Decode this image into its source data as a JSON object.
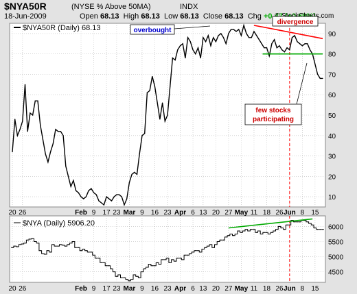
{
  "header": {
    "symbol": "$NYA50R",
    "description": "(NYSE % Above 50MA)",
    "exchange": "INDX",
    "date": "18-Jun-2009",
    "open_label": "Open",
    "open": "68.13",
    "high_label": "High",
    "high": "68.13",
    "low_label": "Low",
    "low": "68.13",
    "close_label": "Close",
    "close": "68.13",
    "chg_label": "Chg",
    "chg": "+0.47 (+0.69%)",
    "copyright": "© StockCharts.com"
  },
  "colors": {
    "panel_bg": "#ffffff",
    "chrome_bg": "#e3e3e3",
    "grid": "#b9b9b9",
    "price_line": "#000000",
    "divergence": "#ff0000",
    "support": "#00aa00",
    "annotation_text_blue": "#0000cc",
    "annotation_text_red": "#cc0000"
  },
  "chart_data": [
    {
      "type": "line",
      "legend": "$NYA50R (Daily) 68.13",
      "ylim": [
        5,
        95
      ],
      "yticks": [
        10,
        20,
        30,
        40,
        50,
        60,
        70,
        80,
        90
      ],
      "grid": true,
      "x_dates": [
        "2008-12-22",
        "2008-12-23",
        "2008-12-24",
        "2008-12-26",
        "2008-12-29",
        "2008-12-30",
        "2008-12-31",
        "2009-01-02",
        "2009-01-05",
        "2009-01-06",
        "2009-01-07",
        "2009-01-08",
        "2009-01-09",
        "2009-01-12",
        "2009-01-13",
        "2009-01-14",
        "2009-01-15",
        "2009-01-16",
        "2009-01-20",
        "2009-01-21",
        "2009-01-22",
        "2009-01-23",
        "2009-01-26",
        "2009-01-27",
        "2009-01-28",
        "2009-01-29",
        "2009-01-30",
        "2009-02-02",
        "2009-02-03",
        "2009-02-04",
        "2009-02-05",
        "2009-02-06",
        "2009-02-09",
        "2009-02-10",
        "2009-02-11",
        "2009-02-12",
        "2009-02-13",
        "2009-02-17",
        "2009-02-18",
        "2009-02-19",
        "2009-02-20",
        "2009-02-23",
        "2009-02-24",
        "2009-02-25",
        "2009-02-26",
        "2009-02-27",
        "2009-03-02",
        "2009-03-03",
        "2009-03-04",
        "2009-03-05",
        "2009-03-06",
        "2009-03-09",
        "2009-03-10",
        "2009-03-11",
        "2009-03-12",
        "2009-03-13",
        "2009-03-16",
        "2009-03-17",
        "2009-03-18",
        "2009-03-19",
        "2009-03-20",
        "2009-03-23",
        "2009-03-24",
        "2009-03-25",
        "2009-03-26",
        "2009-03-27",
        "2009-03-30",
        "2009-03-31",
        "2009-04-01",
        "2009-04-02",
        "2009-04-03",
        "2009-04-06",
        "2009-04-07",
        "2009-04-08",
        "2009-04-09",
        "2009-04-13",
        "2009-04-14",
        "2009-04-15",
        "2009-04-16",
        "2009-04-17",
        "2009-04-20",
        "2009-04-21",
        "2009-04-22",
        "2009-04-23",
        "2009-04-24",
        "2009-04-27",
        "2009-04-28",
        "2009-04-29",
        "2009-04-30",
        "2009-05-01",
        "2009-05-04",
        "2009-05-05",
        "2009-05-06",
        "2009-05-07",
        "2009-05-08",
        "2009-05-11",
        "2009-05-12",
        "2009-05-13",
        "2009-05-14",
        "2009-05-15",
        "2009-05-18",
        "2009-05-19",
        "2009-05-20",
        "2009-05-21",
        "2009-05-22",
        "2009-05-26",
        "2009-05-27",
        "2009-05-28",
        "2009-05-29",
        "2009-06-01",
        "2009-06-02",
        "2009-06-03",
        "2009-06-04",
        "2009-06-05",
        "2009-06-08",
        "2009-06-09",
        "2009-06-10",
        "2009-06-11",
        "2009-06-12",
        "2009-06-15",
        "2009-06-16",
        "2009-06-17",
        "2009-06-18"
      ],
      "y": [
        32,
        48,
        40,
        43,
        47,
        65,
        42,
        51,
        50,
        57,
        57,
        45,
        38,
        31,
        27,
        32,
        36,
        43,
        42,
        42,
        40,
        25,
        20,
        15,
        18,
        13,
        12,
        10,
        9,
        10,
        13,
        14,
        12,
        11,
        8,
        7,
        6,
        10,
        9,
        8,
        10,
        11,
        11,
        10,
        6,
        9,
        17,
        21,
        22,
        21,
        31,
        40,
        41,
        61,
        62,
        69,
        64,
        56,
        48,
        56,
        47,
        50,
        64,
        78,
        77,
        82,
        84,
        85,
        78,
        88,
        86,
        82,
        80,
        83,
        78,
        88,
        86,
        89,
        84,
        88,
        86,
        89,
        90,
        88,
        85,
        90,
        92,
        92,
        91,
        92,
        89,
        94,
        90,
        88,
        88,
        91,
        89,
        87,
        85,
        83,
        83,
        79,
        85,
        87,
        83,
        84,
        82,
        81,
        83,
        82,
        88,
        89,
        86,
        85,
        84,
        85,
        85,
        82,
        80,
        75,
        70,
        68,
        68
      ],
      "annotations": {
        "overbought": "overbought",
        "divergence": "divergence",
        "few_stocks_line1": "few stocks",
        "few_stocks_line2": "participating"
      },
      "divergence_line": {
        "from": {
          "date": "2009-05-11",
          "value": 94
        },
        "to": {
          "date": "2009-06-18",
          "value": 87.5
        }
      },
      "support_line": {
        "from": {
          "date": "2009-05-18",
          "value": 80
        },
        "to": {
          "date": "2009-06-18",
          "value": 80
        }
      }
    },
    {
      "type": "line",
      "legend": "$NYA (Daily) 5906.20",
      "ylim": [
        4150,
        6350
      ],
      "yticks": [
        4500,
        5000,
        5500,
        6000
      ],
      "y_style": "step",
      "y": [
        5300,
        5350,
        5330,
        5400,
        5420,
        5450,
        5550,
        5580,
        5600,
        5500,
        5450,
        5200,
        5100,
        5080,
        5200,
        5150,
        5400,
        5350,
        5350,
        5400,
        5380,
        5350,
        5400,
        5450,
        5500,
        5300,
        5300,
        5200,
        5250,
        5200,
        5150,
        5150,
        5050,
        4950,
        4950,
        4800,
        4800,
        4700,
        4700,
        4600,
        4500,
        4350,
        4400,
        4300,
        4300,
        4250,
        4200,
        4250,
        4400,
        4350,
        4300,
        4500,
        4600,
        4650,
        4750,
        4700,
        4700,
        4800,
        4750,
        4900,
        4900,
        4950,
        4800,
        4900,
        4850,
        4950,
        4950,
        4900,
        5050,
        5050,
        5100,
        5150,
        5200,
        5200,
        5150,
        5250,
        5300,
        5350,
        5400,
        5300,
        5400,
        5500,
        5550,
        5550,
        5650,
        5700,
        5750,
        5700,
        5750,
        5850,
        5800,
        5850,
        5900,
        5850,
        5900,
        5900,
        5800,
        5850,
        5750,
        5800,
        5800,
        5750,
        5800,
        5850,
        5900,
        6000,
        5950,
        5900,
        6050,
        6050,
        6200,
        6150,
        6150,
        6150,
        6200,
        6200,
        6150,
        6100,
        6050,
        5950,
        5900,
        5900,
        5900
      ],
      "divergence_line": {
        "from": {
          "date": "2009-04-27",
          "value": 5950
        },
        "to": {
          "date": "2009-06-12",
          "value": 6250
        }
      }
    }
  ],
  "x_axis": {
    "tick_labels": [
      "20",
      "26",
      "Feb",
      "9",
      "17",
      "23",
      "Mar",
      "9",
      "16",
      "23",
      "Apr",
      "6",
      "13",
      "20",
      "27",
      "May",
      "11",
      "18",
      "26",
      "Jun",
      "8",
      "15"
    ],
    "tick_dates": [
      "2008-12-22",
      "2008-12-29",
      "2009-02-02",
      "2009-02-09",
      "2009-02-17",
      "2009-02-23",
      "2009-03-02",
      "2009-03-09",
      "2009-03-16",
      "2009-03-23",
      "2009-03-30",
      "2009-04-06",
      "2009-04-13",
      "2009-04-20",
      "2009-04-27",
      "2009-05-04",
      "2009-05-11",
      "2009-05-18",
      "2009-05-26",
      "2009-06-01",
      "2009-06-08",
      "2009-06-15"
    ],
    "bold_labels": [
      "Feb",
      "Mar",
      "Apr",
      "May",
      "Jun"
    ],
    "marker_date": "2009-06-01"
  }
}
